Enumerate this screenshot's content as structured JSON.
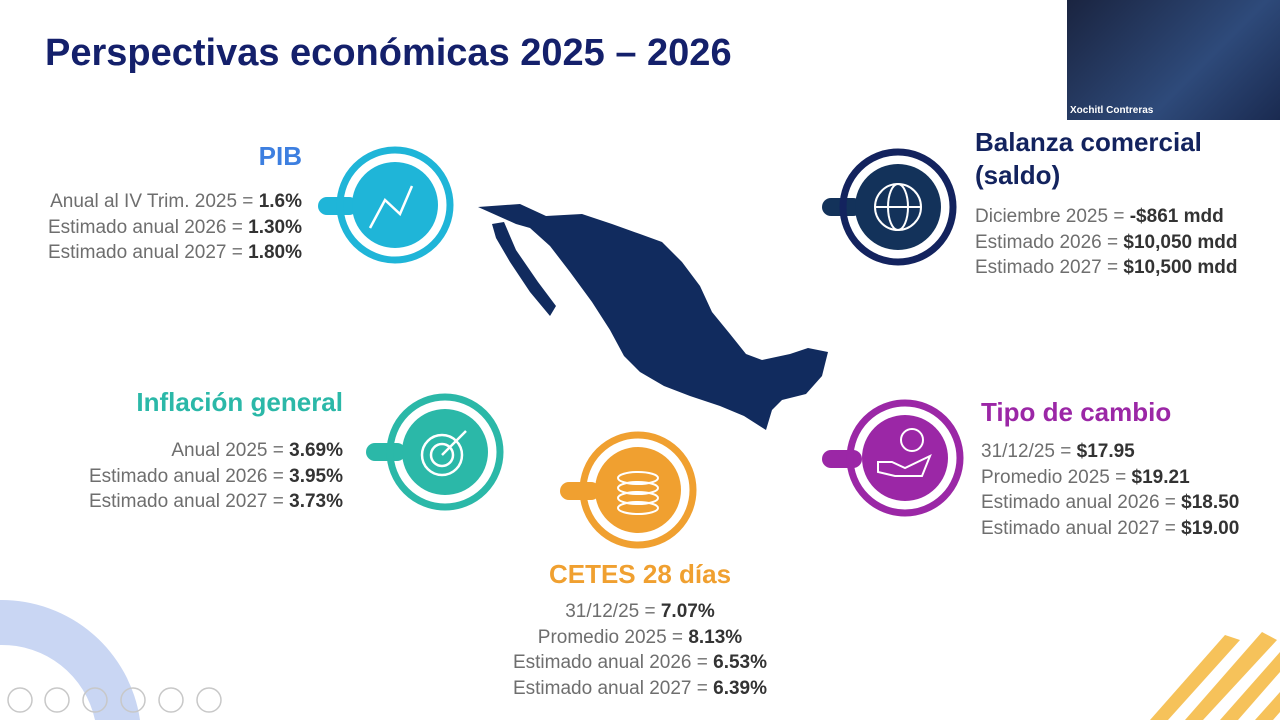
{
  "slide": {
    "title": "Perspectivas económicas 2025 – 2026",
    "sections": [
      {
        "heading_lines": [
          "PIB"
        ],
        "lines": [
          {
            "label": "Anual al IV Trim. 2025 =",
            "value": "1.6%"
          },
          {
            "label": "Estimado anual 2026 =",
            "value": "1.30%"
          },
          {
            "label": "Estimado anual 2027 =",
            "value": "1.80%"
          }
        ]
      },
      {
        "heading_lines": [
          "Balanza comercial",
          "(saldo)"
        ],
        "lines": [
          {
            "label": "Diciembre 2025 =",
            "value": "-$861 mdd"
          },
          {
            "label": "Estimado 2026 =",
            "value": "$10,050 mdd"
          },
          {
            "label": "Estimado 2027 =",
            "value": "$10,500 mdd"
          }
        ]
      },
      {
        "heading_lines": [
          "Inflación general"
        ],
        "lines": [
          {
            "label": "Anual 2025 =",
            "value": "3.69%"
          },
          {
            "label": "Estimado anual 2026 =",
            "value": "3.95%"
          },
          {
            "label": "Estimado anual 2027 =",
            "value": "3.73%"
          }
        ]
      },
      {
        "heading_lines": [
          "Tipo de cambio"
        ],
        "lines": [
          {
            "label": "31/12/25 =",
            "value": "$17.95"
          },
          {
            "label": "Promedio 2025 =",
            "value": "$19.21"
          },
          {
            "label": "Estimado anual 2026 =",
            "value": "$18.50"
          },
          {
            "label": "Estimado anual 2027 =",
            "value": "$19.00"
          }
        ]
      },
      {
        "heading_lines": [
          "CETES 28 días"
        ],
        "lines": [
          {
            "label": "31/12/25 =",
            "value": "7.07%"
          },
          {
            "label": "Promedio 2025 =",
            "value": "8.13%"
          },
          {
            "label": "Estimado anual 2026 =",
            "value": "6.53%"
          },
          {
            "label": "Estimado anual 2027 =",
            "value": "6.39%"
          }
        ]
      }
    ]
  },
  "webcam": {
    "participant": "Xochitl Contreras"
  }
}
